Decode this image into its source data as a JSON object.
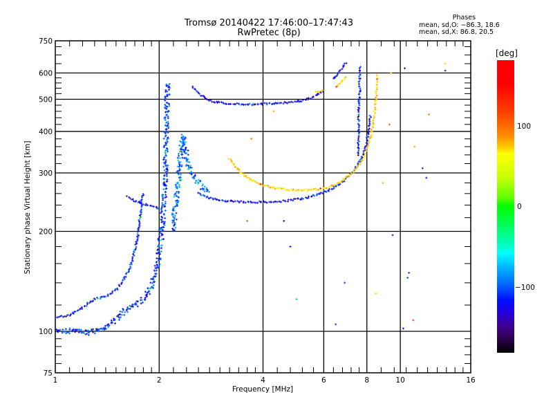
{
  "header": {
    "title_line1": "Tromsø 20140422 17:46:00–17:47:43",
    "title_line2": "RwPretec (8p)",
    "stats_title": "Phases",
    "stats_o": "mean, sd,O: −86.3, 18.6",
    "stats_x": "mean, sd,X:  86.8, 20.5"
  },
  "chart_data": {
    "type": "scatter",
    "title": "Tromsø 20140422 17:46:00–17:47:43 RwPretec (8p)",
    "xlabel": "Frequency [MHz]",
    "ylabel": "Stationary phase Virtual Height [km]",
    "xscale": "log2",
    "yscale": "log",
    "xlim": [
      1,
      16
    ],
    "ylim": [
      75,
      750
    ],
    "x_ticks": [
      1,
      2,
      4,
      6,
      8,
      10,
      16
    ],
    "x_tick_labels": [
      "1",
      "2",
      "4",
      "6",
      "8",
      "10",
      "16"
    ],
    "x_grid": [
      2,
      4,
      6,
      8,
      10
    ],
    "y_ticks": [
      75,
      100,
      200,
      300,
      400,
      500,
      600,
      750
    ],
    "y_tick_labels": [
      "75",
      "100",
      "200",
      "300",
      "400",
      "500",
      "600",
      "750"
    ],
    "y_grid": [
      100,
      200,
      300,
      400,
      500,
      600
    ],
    "grid": true,
    "colorbar": {
      "label": "[deg]",
      "range": [
        -180,
        180
      ],
      "ticks": [
        100,
        0,
        -100
      ],
      "tick_labels": [
        "100",
        "0",
        "−100"
      ]
    },
    "series": [
      {
        "name": "E-layer low trace O",
        "phase": -100,
        "points": [
          [
            1.0,
            110
          ],
          [
            1.1,
            112
          ],
          [
            1.2,
            118
          ],
          [
            1.3,
            125
          ],
          [
            1.38,
            127
          ],
          [
            1.45,
            130
          ],
          [
            1.52,
            135
          ],
          [
            1.58,
            143
          ],
          [
            1.63,
            152
          ],
          [
            1.67,
            163
          ],
          [
            1.7,
            175
          ],
          [
            1.73,
            190
          ],
          [
            1.75,
            210
          ],
          [
            1.77,
            230
          ],
          [
            1.78,
            250
          ],
          [
            1.8,
            262
          ]
        ]
      },
      {
        "name": "E-layer bottom trace O",
        "phase": -95,
        "points": [
          [
            1.0,
            100
          ],
          [
            1.08,
            100
          ],
          [
            1.15,
            101
          ],
          [
            1.22,
            99
          ],
          [
            1.3,
            100
          ],
          [
            1.38,
            102
          ],
          [
            1.45,
            105
          ],
          [
            1.5,
            108
          ],
          [
            1.55,
            112
          ],
          [
            1.62,
            117
          ],
          [
            1.7,
            120
          ],
          [
            1.78,
            124
          ],
          [
            1.85,
            130
          ],
          [
            1.9,
            137
          ],
          [
            1.95,
            148
          ],
          [
            1.98,
            160
          ],
          [
            2.0,
            175
          ],
          [
            2.03,
            195
          ],
          [
            2.05,
            220
          ],
          [
            2.07,
            260
          ],
          [
            2.09,
            320
          ],
          [
            2.1,
            400
          ],
          [
            2.11,
            500
          ],
          [
            2.12,
            560
          ]
        ]
      },
      {
        "name": "Es spike near 1.6 MHz",
        "phase": -105,
        "points": [
          [
            1.62,
            255
          ],
          [
            1.66,
            250
          ],
          [
            1.7,
            247
          ],
          [
            1.75,
            245
          ],
          [
            1.8,
            242
          ],
          [
            1.86,
            240
          ],
          [
            1.9,
            238
          ],
          [
            1.95,
            236
          ],
          [
            1.98,
            235
          ],
          [
            2.0,
            233
          ]
        ]
      },
      {
        "name": "Cusp at 2.3 MHz",
        "phase": -80,
        "points": [
          [
            2.2,
            200
          ],
          [
            2.22,
            230
          ],
          [
            2.25,
            260
          ],
          [
            2.28,
            290
          ],
          [
            2.3,
            330
          ],
          [
            2.32,
            360
          ],
          [
            2.35,
            390
          ],
          [
            2.38,
            360
          ],
          [
            2.42,
            320
          ],
          [
            2.5,
            300
          ],
          [
            2.6,
            280
          ],
          [
            2.7,
            268
          ],
          [
            2.8,
            262
          ]
        ]
      },
      {
        "name": "F-layer O trace",
        "phase": -105,
        "points": [
          [
            2.6,
            260
          ],
          [
            2.8,
            252
          ],
          [
            3.0,
            248
          ],
          [
            3.3,
            246
          ],
          [
            3.6,
            245
          ],
          [
            4.0,
            245
          ],
          [
            4.4,
            246
          ],
          [
            4.8,
            248
          ],
          [
            5.2,
            251
          ],
          [
            5.6,
            256
          ],
          [
            6.0,
            262
          ],
          [
            6.4,
            270
          ],
          [
            6.8,
            282
          ],
          [
            7.2,
            298
          ],
          [
            7.5,
            315
          ],
          [
            7.8,
            340
          ],
          [
            8.0,
            370
          ],
          [
            8.1,
            410
          ],
          [
            8.2,
            450
          ]
        ]
      },
      {
        "name": "F-layer X trace",
        "phase": 95,
        "points": [
          [
            3.2,
            330
          ],
          [
            3.4,
            305
          ],
          [
            3.6,
            290
          ],
          [
            3.9,
            278
          ],
          [
            4.2,
            272
          ],
          [
            4.6,
            268
          ],
          [
            5.0,
            266
          ],
          [
            5.4,
            266
          ],
          [
            5.8,
            268
          ],
          [
            6.2,
            272
          ],
          [
            6.6,
            280
          ],
          [
            7.0,
            292
          ],
          [
            7.4,
            305
          ],
          [
            7.8,
            330
          ],
          [
            8.1,
            365
          ],
          [
            8.3,
            410
          ],
          [
            8.45,
            470
          ],
          [
            8.55,
            540
          ],
          [
            8.6,
            600
          ]
        ]
      },
      {
        "name": "2nd hop F trace",
        "phase": -110,
        "points": [
          [
            2.5,
            545
          ],
          [
            2.6,
            520
          ],
          [
            2.8,
            495
          ],
          [
            3.0,
            488
          ],
          [
            3.3,
            484
          ],
          [
            3.6,
            483
          ],
          [
            4.0,
            484
          ],
          [
            4.4,
            486
          ],
          [
            4.8,
            490
          ],
          [
            5.2,
            495
          ],
          [
            5.5,
            505
          ],
          [
            5.8,
            520
          ],
          [
            6.0,
            530
          ]
        ]
      },
      {
        "name": "2nd hop X fragment",
        "phase": 95,
        "points": [
          [
            5.7,
            525
          ],
          [
            5.8,
            528
          ],
          [
            5.9,
            532
          ],
          [
            6.0,
            536
          ]
        ]
      },
      {
        "name": "Oblique upper trace 6.5 MHz",
        "phase": -110,
        "points": [
          [
            6.4,
            575
          ],
          [
            6.6,
            600
          ],
          [
            6.8,
            625
          ],
          [
            7.0,
            645
          ]
        ]
      },
      {
        "name": "Oblique X fragment 6.6 MHz",
        "phase": 95,
        "points": [
          [
            6.55,
            545
          ],
          [
            6.7,
            560
          ],
          [
            6.85,
            575
          ],
          [
            7.0,
            585
          ]
        ]
      },
      {
        "name": "Vertical O streak 7.6 MHz",
        "phase": -100,
        "points": [
          [
            7.55,
            340
          ],
          [
            7.56,
            380
          ],
          [
            7.57,
            420
          ],
          [
            7.58,
            460
          ],
          [
            7.6,
            500
          ],
          [
            7.62,
            540
          ],
          [
            7.63,
            580
          ],
          [
            7.65,
            630
          ]
        ]
      },
      {
        "name": "Scattered points",
        "phase": 0,
        "points": [
          [
            9.5,
            195,
            -130
          ],
          [
            10.3,
            620,
            -110
          ],
          [
            12.1,
            450,
            120
          ],
          [
            11.0,
            360,
            110
          ],
          [
            9.3,
            420,
            140
          ],
          [
            9.4,
            600,
            100
          ],
          [
            11.6,
            310,
            -110
          ],
          [
            10.5,
            145,
            -90
          ],
          [
            10.9,
            108,
            160
          ],
          [
            10.2,
            102,
            -110
          ],
          [
            5.0,
            125,
            -60
          ],
          [
            6.5,
            105,
            -90
          ],
          [
            8.5,
            130,
            100
          ],
          [
            6.9,
            140,
            -90
          ],
          [
            4.8,
            180,
            -110
          ],
          [
            3.6,
            215,
            140
          ],
          [
            4.6,
            215,
            -120
          ],
          [
            10.6,
            150,
            -90
          ],
          [
            13.5,
            640,
            100
          ],
          [
            13.5,
            610,
            -100
          ],
          [
            8.9,
            280,
            110
          ],
          [
            11.9,
            290,
            -100
          ],
          [
            4.3,
            460,
            110
          ],
          [
            3.7,
            380,
            130
          ]
        ]
      }
    ]
  }
}
